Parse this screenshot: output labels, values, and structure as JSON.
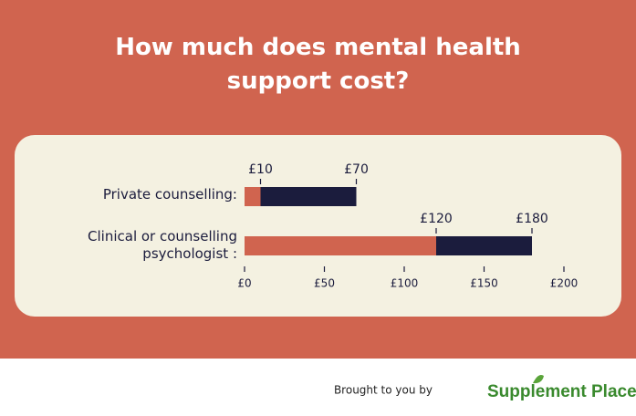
{
  "chart_data": {
    "type": "bar",
    "title": "How much does mental health support cost?",
    "categories": [
      "Private counselling:",
      "Clinical or counselling psychologist :"
    ],
    "series": [
      {
        "color": "#d0644f",
        "values": [
          10,
          120
        ],
        "value_labels": [
          "£10",
          "£120"
        ]
      },
      {
        "color": "#1b1c3d",
        "values": [
          70,
          180
        ],
        "value_labels": [
          "£70",
          "£180"
        ]
      }
    ],
    "xlim": [
      0,
      200
    ],
    "xticks": [
      {
        "value": 0,
        "label": "£0"
      },
      {
        "value": 50,
        "label": "£50"
      },
      {
        "value": 100,
        "label": "£100"
      },
      {
        "value": 150,
        "label": "£150"
      },
      {
        "value": 200,
        "label": "£200"
      }
    ]
  },
  "footer": {
    "prefix": "Brought to you by",
    "brand": "Supplement Place"
  }
}
